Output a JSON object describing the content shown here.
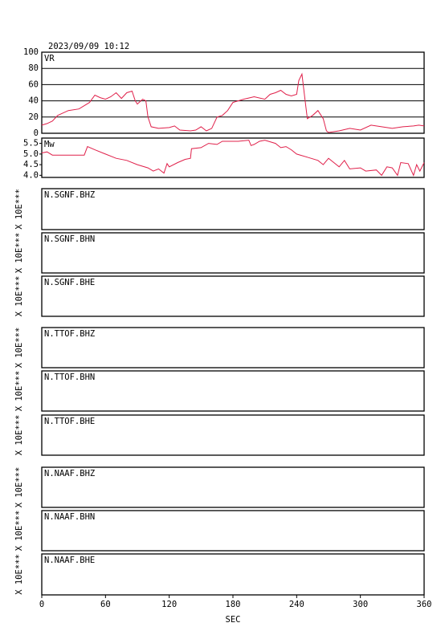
{
  "chart_data": [
    {
      "type": "line",
      "title": "2023/09/09 10:12",
      "label": "VR",
      "color": "#e0204a",
      "grid": true,
      "xlim": [
        0,
        360
      ],
      "ylim": [
        0,
        100
      ],
      "yticks": [
        0,
        20,
        40,
        60,
        80,
        100
      ],
      "x": [
        0,
        5,
        10,
        15,
        25,
        35,
        45,
        50,
        55,
        60,
        65,
        70,
        75,
        80,
        85,
        88,
        90,
        95,
        98,
        100,
        103,
        110,
        120,
        125,
        130,
        140,
        145,
        150,
        155,
        160,
        165,
        170,
        175,
        180,
        190,
        200,
        210,
        215,
        220,
        225,
        230,
        235,
        240,
        242,
        245,
        248,
        250,
        255,
        260,
        265,
        268,
        270,
        280,
        290,
        300,
        310,
        320,
        330,
        340,
        350,
        355,
        360
      ],
      "values": [
        10,
        12,
        15,
        22,
        28,
        30,
        38,
        47,
        44,
        42,
        45,
        50,
        43,
        50,
        52,
        40,
        36,
        42,
        40,
        20,
        8,
        6,
        7,
        9,
        4,
        3,
        4,
        8,
        3,
        6,
        20,
        22,
        28,
        38,
        42,
        45,
        42,
        48,
        50,
        53,
        48,
        46,
        48,
        65,
        73,
        40,
        18,
        22,
        28,
        18,
        3,
        1,
        3,
        6,
        4,
        10,
        8,
        6,
        8,
        9,
        10,
        9
      ]
    },
    {
      "type": "line",
      "label": "Mw",
      "color": "#e0204a",
      "grid": false,
      "xlim": [
        0,
        360
      ],
      "ylim": [
        3.9,
        5.75
      ],
      "yticks": [
        {
          "value": 4,
          "label": "4.0"
        },
        4.5,
        {
          "value": 5,
          "label": "5.0"
        },
        5.5
      ],
      "x": [
        0,
        5,
        10,
        20,
        40,
        43,
        50,
        60,
        70,
        80,
        90,
        100,
        105,
        110,
        115,
        118,
        120,
        128,
        135,
        140,
        141,
        150,
        157,
        165,
        170,
        175,
        185,
        195,
        197,
        200,
        205,
        210,
        220,
        225,
        230,
        235,
        240,
        250,
        260,
        265,
        270,
        275,
        280,
        285,
        290,
        300,
        305,
        315,
        320,
        325,
        330,
        335,
        338,
        345,
        350,
        353,
        356,
        360
      ],
      "values": [
        5.05,
        5.1,
        4.95,
        4.95,
        4.95,
        5.35,
        5.2,
        5.0,
        4.8,
        4.7,
        4.5,
        4.35,
        4.2,
        4.3,
        4.1,
        4.55,
        4.4,
        4.6,
        4.75,
        4.8,
        5.25,
        5.3,
        5.5,
        5.45,
        5.6,
        5.6,
        5.6,
        5.65,
        5.4,
        5.45,
        5.6,
        5.65,
        5.5,
        5.3,
        5.35,
        5.2,
        5.0,
        4.85,
        4.7,
        4.5,
        4.8,
        4.6,
        4.4,
        4.7,
        4.3,
        4.35,
        4.2,
        4.25,
        4.0,
        4.4,
        4.35,
        4.0,
        4.6,
        4.55,
        4.0,
        4.5,
        4.2,
        4.6
      ]
    },
    {
      "type": "trace",
      "label": "N.SGNF.BHZ",
      "ylabel": "X 10E***"
    },
    {
      "type": "trace",
      "label": "N.SGNF.BHN",
      "ylabel": "X 10E***"
    },
    {
      "type": "trace",
      "label": "N.SGNF.BHE",
      "ylabel": "X 10E***"
    },
    {
      "type": "trace",
      "label": "N.TTOF.BHZ",
      "ylabel": "X 10E***"
    },
    {
      "type": "trace",
      "label": "N.TTOF.BHN",
      "ylabel": "X 10E***"
    },
    {
      "type": "trace",
      "label": "N.TTOF.BHE",
      "ylabel": "X 10E***"
    },
    {
      "type": "trace",
      "label": "N.NAAF.BHZ",
      "ylabel": "X 10E***"
    },
    {
      "type": "trace",
      "label": "N.NAAF.BHN",
      "ylabel": "X 10E***"
    },
    {
      "type": "trace",
      "label": "N.NAAF.BHE",
      "ylabel": "X 10E***",
      "xlabel": "SEC",
      "xlim": [
        0,
        360
      ],
      "xticks": [
        0,
        60,
        120,
        180,
        240,
        300,
        360
      ]
    }
  ]
}
